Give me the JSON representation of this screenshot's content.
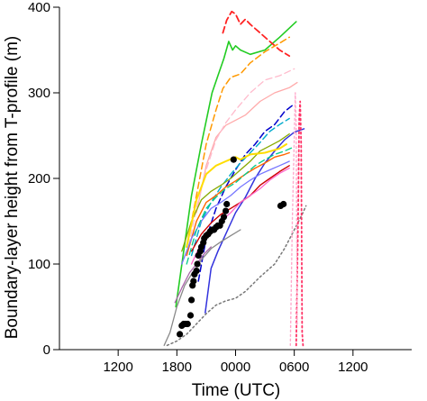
{
  "chart_data": {
    "type": "line",
    "xlabel": "Time (UTC)",
    "ylabel": "Boundary-layer height from T-profile (m)",
    "xlim": [
      -6,
      30
    ],
    "ylim": [
      0,
      400
    ],
    "x_unit": "hours since 1200 UTC",
    "x_ticks": [
      {
        "value": 0,
        "label": "1200"
      },
      {
        "value": 6,
        "label": "1800"
      },
      {
        "value": 12,
        "label": "0000"
      },
      {
        "value": 18,
        "label": "0600"
      },
      {
        "value": 24,
        "label": "1200"
      }
    ],
    "y_ticks": [
      {
        "value": 0,
        "label": "0"
      },
      {
        "value": 100,
        "label": "100"
      },
      {
        "value": 200,
        "label": "200"
      },
      {
        "value": 300,
        "label": "300"
      },
      {
        "value": 400,
        "label": "400"
      }
    ],
    "series": [
      {
        "color": "#22cc22",
        "dash": "solid",
        "width": 1.6,
        "points": [
          [
            5.9,
            50
          ],
          [
            7.5,
            180
          ],
          [
            8.5,
            240
          ],
          [
            9.6,
            300
          ],
          [
            10.2,
            320
          ],
          [
            10.8,
            340
          ],
          [
            11.3,
            360
          ],
          [
            11.7,
            350
          ],
          [
            12.0,
            355
          ],
          [
            12.5,
            350
          ],
          [
            13.5,
            345
          ],
          [
            15.0,
            350
          ],
          [
            16.5,
            365
          ],
          [
            18.2,
            383
          ]
        ]
      },
      {
        "color": "#ff2222",
        "dash": "dashed",
        "width": 1.8,
        "points": [
          [
            10.7,
            370
          ],
          [
            11.1,
            385
          ],
          [
            11.6,
            395
          ],
          [
            12.0,
            392
          ],
          [
            12.5,
            380
          ],
          [
            13.0,
            386
          ],
          [
            13.5,
            380
          ],
          [
            14.5,
            370
          ],
          [
            15.5,
            360
          ],
          [
            16.5,
            350
          ],
          [
            17.5,
            343
          ]
        ]
      },
      {
        "color": "#ff9900",
        "dash": "dashed",
        "width": 1.5,
        "points": [
          [
            7.0,
            120
          ],
          [
            8.0,
            180
          ],
          [
            9.0,
            240
          ],
          [
            10.0,
            280
          ],
          [
            10.7,
            305
          ],
          [
            11.5,
            318
          ],
          [
            12.5,
            322
          ],
          [
            13.5,
            335
          ],
          [
            15.0,
            348
          ],
          [
            16.5,
            358
          ],
          [
            17.5,
            365
          ]
        ]
      },
      {
        "color": "#ffaaaa",
        "dash": "solid",
        "width": 1.3,
        "points": [
          [
            8.0,
            160
          ],
          [
            9.0,
            215
          ],
          [
            10.0,
            248
          ],
          [
            11.0,
            262
          ],
          [
            12.0,
            268
          ],
          [
            13.0,
            274
          ],
          [
            14.5,
            290
          ],
          [
            16.0,
            300
          ],
          [
            17.5,
            306
          ],
          [
            18.3,
            312
          ]
        ]
      },
      {
        "color": "#ffbbcc",
        "dash": "dashed",
        "width": 1.3,
        "points": [
          [
            7.0,
            110
          ],
          [
            8.0,
            165
          ],
          [
            9.0,
            210
          ],
          [
            10.0,
            245
          ],
          [
            11.0,
            265
          ],
          [
            12.0,
            280
          ],
          [
            13.5,
            300
          ],
          [
            15.0,
            315
          ],
          [
            16.5,
            320
          ],
          [
            18.0,
            328
          ]
        ]
      },
      {
        "color": "#0000cc",
        "dash": "dashed",
        "width": 1.5,
        "points": [
          [
            8.2,
            80
          ],
          [
            9.0,
            130
          ],
          [
            10.0,
            165
          ],
          [
            11.0,
            190
          ],
          [
            12.0,
            210
          ],
          [
            13.0,
            228
          ],
          [
            14.0,
            240
          ],
          [
            15.0,
            255
          ],
          [
            16.0,
            263
          ],
          [
            17.0,
            278
          ],
          [
            18.0,
            287
          ]
        ]
      },
      {
        "color": "#3333dd",
        "dash": "solid",
        "width": 1.5,
        "points": [
          [
            8.9,
            43
          ],
          [
            9.5,
            95
          ],
          [
            10.2,
            115
          ],
          [
            11.0,
            135
          ],
          [
            12.0,
            160
          ],
          [
            13.0,
            178
          ],
          [
            14.0,
            200
          ],
          [
            15.0,
            218
          ],
          [
            16.0,
            232
          ],
          [
            17.0,
            245
          ],
          [
            18.0,
            254
          ],
          [
            19.0,
            258
          ]
        ]
      },
      {
        "color": "#00aacc",
        "dash": "dashed",
        "width": 1.4,
        "points": [
          [
            7.5,
            110
          ],
          [
            8.5,
            150
          ],
          [
            9.5,
            172
          ],
          [
            10.5,
            190
          ],
          [
            11.5,
            205
          ],
          [
            12.5,
            218
          ],
          [
            13.5,
            230
          ],
          [
            14.5,
            242
          ],
          [
            15.5,
            255
          ],
          [
            16.5,
            263
          ],
          [
            17.5,
            270
          ]
        ]
      },
      {
        "color": "#88aa00",
        "dash": "solid",
        "width": 1.3,
        "points": [
          [
            6.5,
            115
          ],
          [
            7.5,
            150
          ],
          [
            8.5,
            175
          ],
          [
            9.5,
            185
          ],
          [
            10.5,
            192
          ],
          [
            11.5,
            200
          ],
          [
            12.5,
            210
          ],
          [
            13.5,
            220
          ],
          [
            14.5,
            232
          ],
          [
            15.5,
            238
          ],
          [
            16.5,
            244
          ],
          [
            17.5,
            252
          ]
        ]
      },
      {
        "color": "#ffdd00",
        "dash": "solid",
        "width": 2.0,
        "points": [
          [
            7.0,
            120
          ],
          [
            8.0,
            175
          ],
          [
            9.0,
            205
          ],
          [
            10.0,
            215
          ],
          [
            11.0,
            220
          ],
          [
            12.0,
            225
          ],
          [
            12.5,
            222
          ],
          [
            13.5,
            228
          ],
          [
            15.0,
            230
          ],
          [
            16.5,
            235
          ],
          [
            17.2,
            240
          ]
        ]
      },
      {
        "color": "#ff6600",
        "dash": "solid",
        "width": 1.4,
        "points": [
          [
            7.0,
            110
          ],
          [
            8.0,
            150
          ],
          [
            9.0,
            172
          ],
          [
            10.0,
            180
          ],
          [
            11.0,
            190
          ],
          [
            12.0,
            197
          ],
          [
            13.0,
            205
          ],
          [
            14.0,
            212
          ],
          [
            15.0,
            218
          ],
          [
            16.0,
            225
          ],
          [
            17.0,
            228
          ],
          [
            17.5,
            230
          ]
        ]
      },
      {
        "color": "#cc0000",
        "dash": "solid",
        "width": 1.4,
        "points": [
          [
            7.5,
            115
          ],
          [
            8.5,
            135
          ],
          [
            9.5,
            148
          ],
          [
            10.5,
            158
          ],
          [
            11.5,
            165
          ],
          [
            12.5,
            172
          ],
          [
            13.5,
            180
          ],
          [
            14.5,
            192
          ],
          [
            15.5,
            200
          ],
          [
            16.5,
            208
          ],
          [
            17.5,
            215
          ]
        ]
      },
      {
        "color": "#ff66cc",
        "dash": "solid",
        "width": 1.3,
        "points": [
          [
            7.5,
            100
          ],
          [
            8.5,
            125
          ],
          [
            9.5,
            140
          ],
          [
            10.5,
            150
          ],
          [
            11.5,
            160
          ],
          [
            12.5,
            172
          ],
          [
            13.5,
            180
          ],
          [
            14.5,
            188
          ],
          [
            15.5,
            198
          ],
          [
            16.5,
            206
          ],
          [
            17.5,
            212
          ]
        ]
      },
      {
        "color": "#7777ff",
        "dash": "solid",
        "width": 1.3,
        "points": [
          [
            6.5,
            100
          ],
          [
            7.5,
            130
          ],
          [
            8.5,
            150
          ],
          [
            9.5,
            165
          ],
          [
            10.5,
            172
          ],
          [
            11.5,
            180
          ],
          [
            12.5,
            190
          ],
          [
            13.5,
            198
          ],
          [
            14.5,
            205
          ],
          [
            15.5,
            210
          ],
          [
            16.5,
            215
          ],
          [
            17.5,
            220
          ]
        ]
      },
      {
        "color": "#00cc88",
        "dash": "dashed",
        "width": 1.3,
        "points": [
          [
            7.0,
            100
          ],
          [
            8.0,
            140
          ],
          [
            9.0,
            165
          ],
          [
            10.0,
            178
          ],
          [
            11.0,
            188
          ],
          [
            12.0,
            195
          ],
          [
            13.0,
            205
          ],
          [
            14.0,
            215
          ],
          [
            15.0,
            222
          ],
          [
            16.0,
            228
          ],
          [
            17.0,
            232
          ],
          [
            17.8,
            236
          ]
        ]
      },
      {
        "color": "#888888",
        "dash": "solid",
        "width": 1.3,
        "points": [
          [
            4.7,
            5
          ],
          [
            5.3,
            20
          ],
          [
            6.0,
            50
          ],
          [
            6.8,
            75
          ],
          [
            7.6,
            90
          ],
          [
            8.5,
            105
          ],
          [
            9.5,
            118
          ],
          [
            10.5,
            126
          ],
          [
            11.5,
            133
          ],
          [
            12.5,
            140
          ]
        ]
      },
      {
        "color": "#aa66aa",
        "dash": "solid",
        "width": 1.3,
        "points": [
          [
            5.8,
            55
          ],
          [
            6.5,
            72
          ],
          [
            7.3,
            90
          ],
          [
            8.0,
            100
          ],
          [
            8.8,
            112
          ],
          [
            9.5,
            120
          ]
        ]
      },
      {
        "color": "#777777",
        "dash": "dotted",
        "width": 1.5,
        "points": [
          [
            5.0,
            5
          ],
          [
            6.0,
            10
          ],
          [
            7.0,
            18
          ],
          [
            8.0,
            30
          ],
          [
            9.0,
            42
          ],
          [
            10.0,
            52
          ],
          [
            11.0,
            57
          ],
          [
            12.0,
            60
          ],
          [
            13.0,
            68
          ],
          [
            14.5,
            85
          ],
          [
            16.0,
            100
          ],
          [
            17.0,
            118
          ],
          [
            18.0,
            140
          ],
          [
            18.8,
            158
          ],
          [
            19.2,
            168
          ]
        ]
      },
      {
        "color": "#ff3366",
        "dash": "dotted",
        "width": 1.8,
        "points": [
          [
            18.2,
            5
          ],
          [
            18.4,
            160
          ],
          [
            18.5,
            270
          ],
          [
            18.6,
            290
          ],
          [
            18.7,
            240
          ],
          [
            18.8,
            20
          ],
          [
            18.9,
            5
          ]
        ]
      },
      {
        "color": "#ffaacc",
        "dash": "dotted",
        "width": 1.4,
        "points": [
          [
            17.6,
            5
          ],
          [
            17.8,
            150
          ],
          [
            18.0,
            250
          ],
          [
            18.1,
            300
          ],
          [
            18.2,
            260
          ],
          [
            18.3,
            30
          ]
        ]
      }
    ],
    "markers": {
      "name": "observations",
      "color": "#000000",
      "points": [
        [
          6.3,
          18
        ],
        [
          6.5,
          28
        ],
        [
          6.7,
          30
        ],
        [
          6.9,
          30
        ],
        [
          7.1,
          30
        ],
        [
          7.4,
          40
        ],
        [
          7.5,
          58
        ],
        [
          7.6,
          75
        ],
        [
          7.7,
          80
        ],
        [
          7.8,
          88
        ],
        [
          8.0,
          92
        ],
        [
          8.1,
          100
        ],
        [
          8.2,
          110
        ],
        [
          8.4,
          115
        ],
        [
          8.5,
          120
        ],
        [
          8.7,
          125
        ],
        [
          8.8,
          130
        ],
        [
          9.0,
          133
        ],
        [
          9.2,
          135
        ],
        [
          9.4,
          138
        ],
        [
          9.6,
          140
        ],
        [
          9.8,
          140
        ],
        [
          10.0,
          143
        ],
        [
          10.2,
          145
        ],
        [
          10.4,
          145
        ],
        [
          10.6,
          150
        ],
        [
          10.8,
          155
        ],
        [
          11.0,
          162
        ],
        [
          11.1,
          170
        ],
        [
          11.8,
          222
        ],
        [
          16.6,
          168
        ],
        [
          16.9,
          170
        ]
      ]
    }
  }
}
